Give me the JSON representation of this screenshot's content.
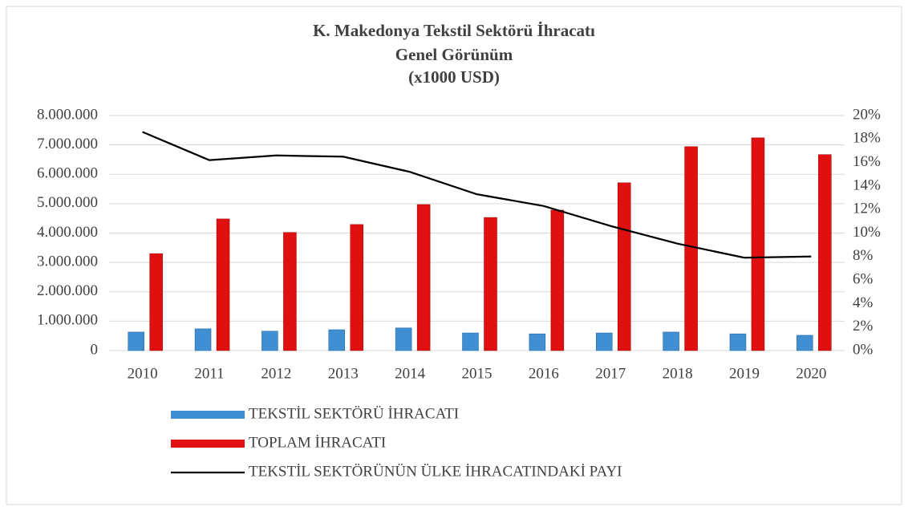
{
  "chart_data": {
    "type": "bar",
    "title": "K. Makedonya Tekstil Sektörü İhracatı",
    "subtitle": "Genel Görünüm",
    "unit_note": "(x1000 USD)",
    "categories": [
      "2010",
      "2011",
      "2012",
      "2013",
      "2014",
      "2015",
      "2016",
      "2017",
      "2018",
      "2019",
      "2020"
    ],
    "series": [
      {
        "name": "TEKSTİL SEKTÖRÜ İHRACATI",
        "type": "bar",
        "color": "#3f8fd2",
        "values": [
          630000,
          740000,
          660000,
          710000,
          770000,
          600000,
          570000,
          600000,
          630000,
          570000,
          520000
        ]
      },
      {
        "name": "TOPLAM İHRACATI",
        "type": "bar",
        "color": "#e01010",
        "values": [
          3300000,
          4480000,
          4020000,
          4290000,
          4970000,
          4530000,
          4780000,
          5710000,
          6940000,
          7240000,
          6670000
        ]
      },
      {
        "name": "TEKSTİL SEKTÖRÜNÜN ÜLKE İHRACATINDAKİ PAYI",
        "type": "line",
        "axis": "y2",
        "color": "#000000",
        "values": [
          18.6,
          16.2,
          16.6,
          16.5,
          15.2,
          13.3,
          12.3,
          10.6,
          9.1,
          7.9,
          8.0
        ]
      }
    ],
    "ylim": [
      0,
      8000000
    ],
    "yticks": [
      0,
      {
        "value": 1000000,
        "label": "1.000.000"
      },
      {
        "value": 2000000,
        "label": "2.000.000"
      },
      {
        "value": 3000000,
        "label": "3.000.000"
      },
      {
        "value": 4000000,
        "label": "4.000.000"
      },
      {
        "value": 5000000,
        "label": "5.000.000"
      },
      {
        "value": 6000000,
        "label": "6.000.000"
      },
      {
        "value": 7000000,
        "label": "7.000.000"
      },
      {
        "value": 8000000,
        "label": "8.000.000"
      }
    ],
    "y2lim": [
      0,
      20
    ],
    "y2ticks": [
      {
        "value": 0,
        "label": "0%"
      },
      {
        "value": 2,
        "label": "2%"
      },
      {
        "value": 4,
        "label": "4%"
      },
      {
        "value": 6,
        "label": "6%"
      },
      {
        "value": 8,
        "label": "8%"
      },
      {
        "value": 10,
        "label": "10%"
      },
      {
        "value": 12,
        "label": "12%"
      },
      {
        "value": 14,
        "label": "14%"
      },
      {
        "value": 16,
        "label": "16%"
      },
      {
        "value": 18,
        "label": "18%"
      },
      {
        "value": 20,
        "label": "20%"
      }
    ],
    "grid": true,
    "legend": "bottom"
  }
}
